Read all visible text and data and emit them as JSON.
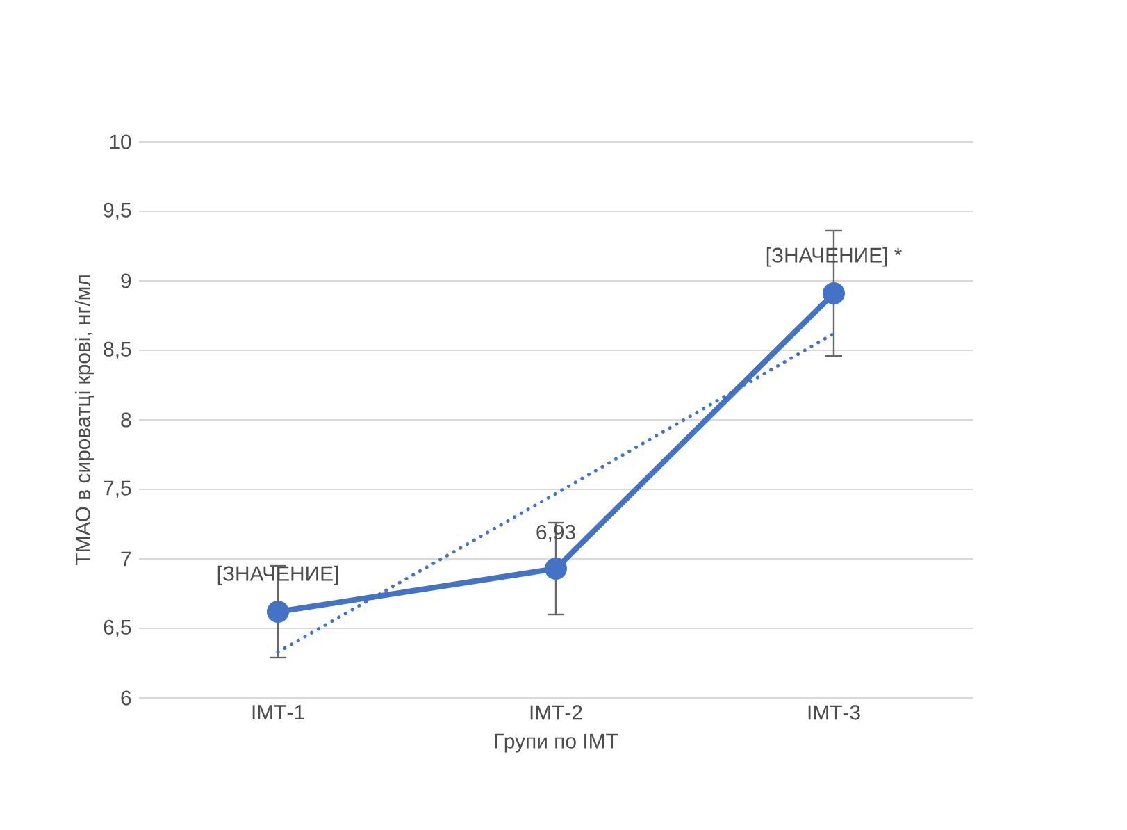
{
  "chart_data": {
    "type": "line",
    "xlabel": "Групи по ІМТ",
    "ylabel": "ТМАО в сироватці крові, нг/мл",
    "categories": [
      "ІМТ-1",
      "ІМТ-2",
      "ІМТ-3"
    ],
    "series": [
      {
        "color": "#4472c4",
        "values": [
          6.62,
          6.93,
          8.91
        ],
        "errors": [
          [
            6.29,
            6.95
          ],
          [
            6.6,
            7.26
          ],
          [
            8.46,
            9.36
          ]
        ],
        "marker": "circle",
        "line_style": "solid",
        "value_labels": [
          "[ЗНАЧЕНИЕ]",
          "6,93",
          "[ЗНАЧЕНИЕ] *"
        ]
      },
      {
        "color": "#4472c4",
        "values": [
          6.33,
          7.47,
          8.62
        ],
        "marker": "none",
        "line_style": "dotted"
      }
    ],
    "ylim": [
      6,
      10
    ],
    "yticks": [
      6,
      {
        "value": 6.5,
        "label": "6,5"
      },
      7,
      {
        "value": 7.5,
        "label": "7,5"
      },
      8,
      {
        "value": 8.5,
        "label": "8,5"
      },
      9,
      {
        "value": 9.5,
        "label": "9,5"
      },
      10
    ],
    "grid": "y"
  }
}
